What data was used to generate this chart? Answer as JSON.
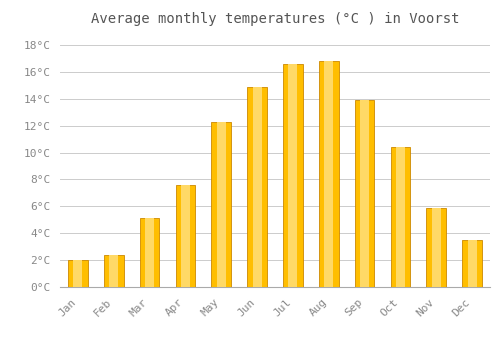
{
  "title": "Average monthly temperatures (°C ) in Voorst",
  "months": [
    "Jan",
    "Feb",
    "Mar",
    "Apr",
    "May",
    "Jun",
    "Jul",
    "Aug",
    "Sep",
    "Oct",
    "Nov",
    "Dec"
  ],
  "values": [
    2.0,
    2.4,
    5.1,
    7.6,
    12.3,
    14.9,
    16.6,
    16.8,
    13.9,
    10.4,
    5.9,
    3.5
  ],
  "bar_color": "#FFBE00",
  "bar_edge_color": "#CC8800",
  "bar_highlight_color": "#FFD966",
  "background_color": "#ffffff",
  "grid_color": "#cccccc",
  "ytick_labels": [
    "0°C",
    "2°C",
    "4°C",
    "6°C",
    "8°C",
    "10°C",
    "12°C",
    "14°C",
    "16°C",
    "18°C"
  ],
  "ytick_values": [
    0,
    2,
    4,
    6,
    8,
    10,
    12,
    14,
    16,
    18
  ],
  "ylim": [
    0,
    19.0
  ],
  "title_fontsize": 10,
  "tick_fontsize": 8,
  "title_color": "#555555",
  "tick_color": "#888888",
  "font_family": "monospace",
  "bar_width": 0.55
}
